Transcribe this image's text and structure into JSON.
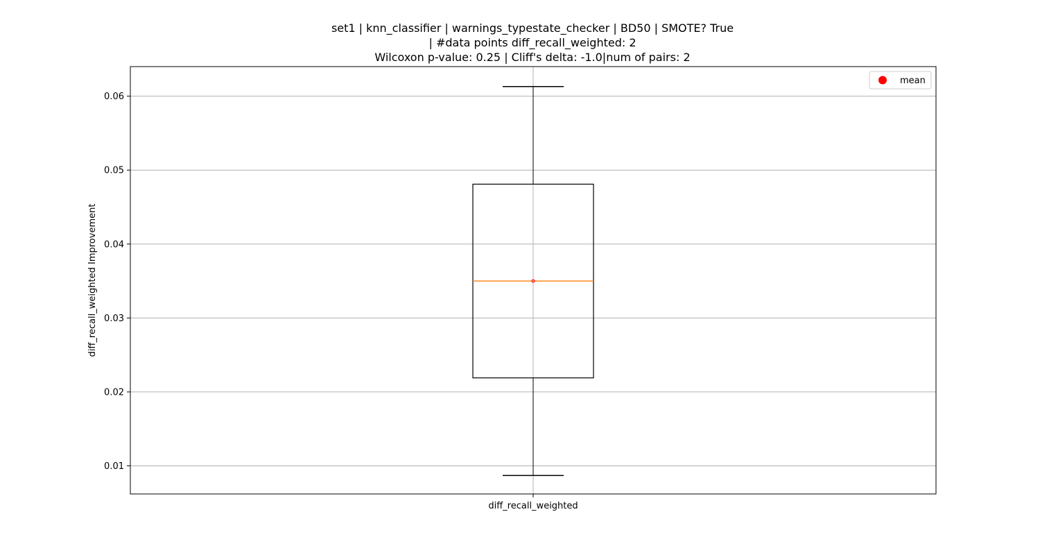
{
  "chart_data": {
    "type": "box",
    "title_lines": [
      "set1 | knn_classifier | warnings_typestate_checker | BD50 | SMOTE? True",
      "| #data points diff_recall_weighted: 2",
      "Wilcoxon p-value: 0.25 | Cliff's delta: -1.0|num of pairs: 2"
    ],
    "ylabel": "diff_recall_weighted Improvement",
    "categories": [
      "diff_recall_weighted"
    ],
    "ylim": [
      0.0062,
      0.064
    ],
    "yticks": [
      0.01,
      0.02,
      0.03,
      0.04,
      0.05,
      0.06
    ],
    "ytick_labels": [
      "0.01",
      "0.02",
      "0.03",
      "0.04",
      "0.05",
      "0.06"
    ],
    "grid": true,
    "legend": {
      "position": "upper-right",
      "entries": [
        {
          "label": "mean",
          "color": "#ff0000",
          "marker": "circle"
        }
      ]
    },
    "boxes": [
      {
        "category": "diff_recall_weighted",
        "whisker_low": 0.0087,
        "q1": 0.0219,
        "median": 0.035,
        "q3": 0.0481,
        "whisker_high": 0.0613,
        "mean": 0.035
      }
    ],
    "colors": {
      "box": "#000000",
      "median": "#ff7f0e",
      "mean": "#ff0000",
      "grid": "#b0b0b0"
    }
  }
}
